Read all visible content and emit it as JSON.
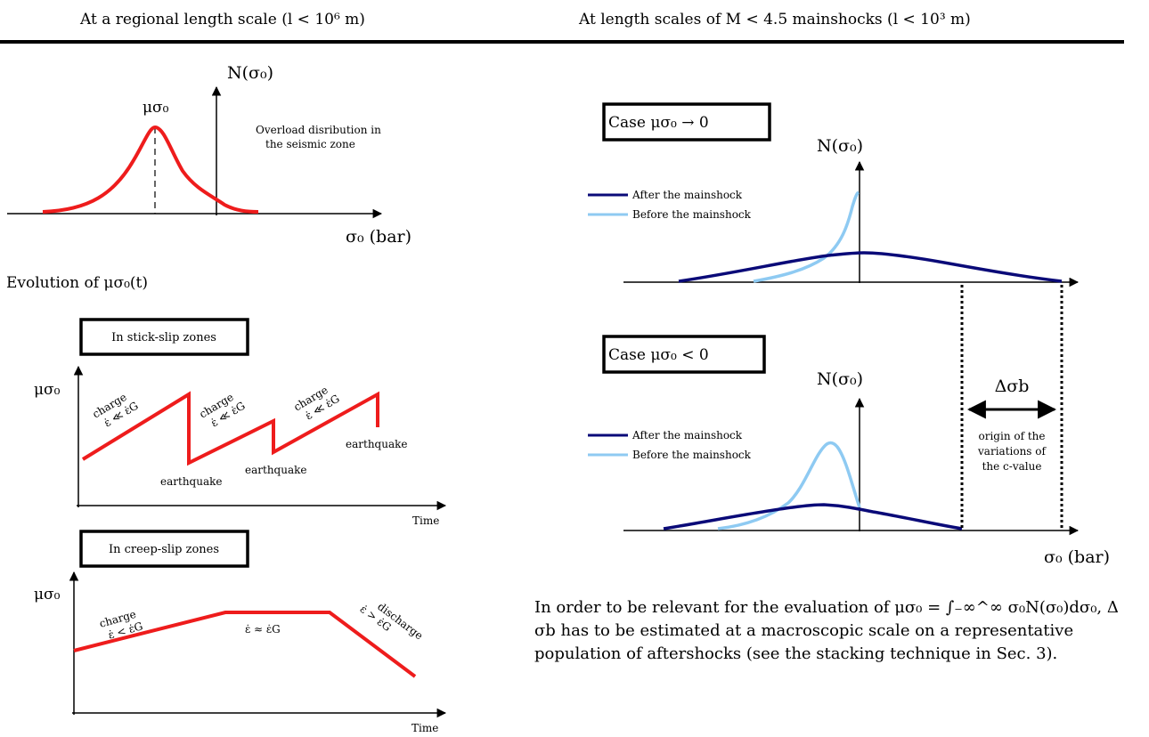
{
  "header": {
    "left_title": "At a regional length scale (l < 10⁶ m)",
    "right_title": "At length scales of M < 4.5 mainshocks (l < 10³ m)"
  },
  "overload_panel": {
    "y_label": "N(σ₀)",
    "mu_label": "μσ₀",
    "note_line1": "Overload disribution in",
    "note_line2": "the seismic zone",
    "x_label": "σ₀ (bar)"
  },
  "evolution": {
    "title": "Evolution of μσ₀(t)"
  },
  "stick_slip": {
    "box_label": "In stick-slip zones",
    "y_label": "μσ₀",
    "x_label": "Time",
    "charge_label": "charge",
    "rate_label": "ε̇ ≪ ε̇G",
    "earthquake_label": "earthquake"
  },
  "creep_slip": {
    "box_label": "In creep-slip zones",
    "y_label": "μσ₀",
    "x_label": "Time",
    "charge_label": "charge",
    "charge_rate": "ε̇ < ε̇G",
    "plateau_rate": "ε̇ ≈ ε̇G",
    "discharge_label": "discharge",
    "discharge_rate": "ε̇ > ε̇G"
  },
  "case_zero": {
    "box_label": "Case μσ₀ → 0",
    "y_label": "N(σ₀)",
    "legend_after": "After the mainshock",
    "legend_before": "Before the mainshock"
  },
  "case_neg": {
    "box_label": "Case μσ₀ < 0",
    "y_label": "N(σ₀)",
    "legend_after": "After the mainshock",
    "legend_before": "Before the mainshock",
    "x_label": "σ₀ (bar)"
  },
  "delta": {
    "label": "Δσb",
    "note_line1": "origin of the",
    "note_line2": "variations of",
    "note_line3": "the c-value"
  },
  "bottom": {
    "line1": "In order to be relevant for the evaluation of μσ₀ = ∫₋∞^∞ σ₀N(σ₀)dσ₀, Δ",
    "line2": "σb has to be estimated at a macroscopic scale on a representative",
    "line3": "population of aftershocks (see the stacking technique in Sec. 3)."
  },
  "colors": {
    "red": "#ee1c1c",
    "dark_blue": "#0a0a78",
    "light_blue": "#8ecaf2"
  }
}
